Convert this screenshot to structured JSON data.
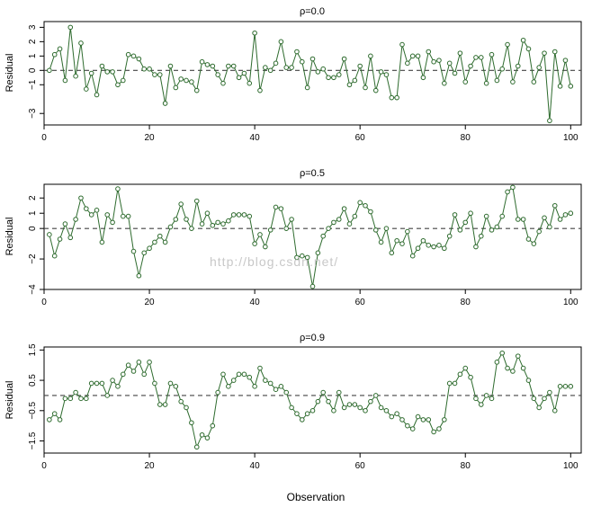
{
  "xlabel": "Observation",
  "watermark": "http://blog.csdn.net/",
  "colors": {
    "series": "#2e6b2e",
    "reference_line": "#444444"
  },
  "chart_data": [
    {
      "type": "line",
      "title": "ρ=0.0",
      "xlabel": "",
      "ylabel": "Residual",
      "xlim": [
        0,
        102
      ],
      "ylim": [
        -3.8,
        3.4
      ],
      "xticks": [
        "0",
        "20",
        "40",
        "60",
        "80",
        "100"
      ],
      "yticks": [
        "−3",
        "−1",
        "0",
        "1",
        "2",
        "3"
      ],
      "reference_line": 0,
      "x": [
        1,
        2,
        3,
        4,
        5,
        6,
        7,
        8,
        9,
        10,
        11,
        12,
        13,
        14,
        15,
        16,
        17,
        18,
        19,
        20,
        21,
        22,
        23,
        24,
        25,
        26,
        27,
        28,
        29,
        30,
        31,
        32,
        33,
        34,
        35,
        36,
        37,
        38,
        39,
        40,
        41,
        42,
        43,
        44,
        45,
        46,
        47,
        48,
        49,
        50,
        51,
        52,
        53,
        54,
        55,
        56,
        57,
        58,
        59,
        60,
        61,
        62,
        63,
        64,
        65,
        66,
        67,
        68,
        69,
        70,
        71,
        72,
        73,
        74,
        75,
        76,
        77,
        78,
        79,
        80,
        81,
        82,
        83,
        84,
        85,
        86,
        87,
        88,
        89,
        90,
        91,
        92,
        93,
        94,
        95,
        96,
        97,
        98,
        99,
        100
      ],
      "values": [
        0.0,
        1.1,
        1.5,
        -0.7,
        3.0,
        -0.4,
        1.9,
        -1.3,
        -0.2,
        -1.7,
        0.3,
        -0.1,
        -0.1,
        -1.0,
        -0.7,
        1.1,
        1.0,
        0.8,
        0.1,
        0.1,
        -0.3,
        -0.3,
        -2.3,
        0.3,
        -1.2,
        -0.6,
        -0.7,
        -0.8,
        -1.4,
        0.6,
        0.4,
        0.3,
        -0.3,
        -0.9,
        0.3,
        0.3,
        -0.5,
        -0.2,
        -0.9,
        2.6,
        -1.4,
        0.2,
        0.0,
        0.5,
        2.0,
        0.2,
        0.2,
        1.3,
        0.6,
        -1.2,
        0.8,
        -0.1,
        0.1,
        -0.5,
        -0.5,
        -0.3,
        0.8,
        -1.0,
        -0.7,
        0.3,
        -1.2,
        1.0,
        -1.4,
        -0.1,
        -0.3,
        -1.9,
        -1.9,
        1.8,
        0.5,
        1.0,
        1.0,
        -0.5,
        1.3,
        0.6,
        0.7,
        -0.9,
        0.5,
        -0.2,
        1.2,
        -0.8,
        0.3,
        0.9,
        0.9,
        -0.9,
        1.1,
        -0.7,
        0.1,
        1.8,
        -0.8,
        0.3,
        2.1,
        1.5,
        -0.8,
        0.2,
        1.2,
        -3.5,
        1.3,
        -1.1,
        0.7,
        -1.1
      ]
    },
    {
      "type": "line",
      "title": "ρ=0.5",
      "xlabel": "",
      "ylabel": "Residual",
      "xlim": [
        0,
        102
      ],
      "ylim": [
        -4.0,
        2.9
      ],
      "xticks": [
        "0",
        "20",
        "40",
        "60",
        "80",
        "100"
      ],
      "yticks": [
        "−4",
        "−2",
        "0",
        "1",
        "2"
      ],
      "reference_line": 0,
      "x": [
        1,
        2,
        3,
        4,
        5,
        6,
        7,
        8,
        9,
        10,
        11,
        12,
        13,
        14,
        15,
        16,
        17,
        18,
        19,
        20,
        21,
        22,
        23,
        24,
        25,
        26,
        27,
        28,
        29,
        30,
        31,
        32,
        33,
        34,
        35,
        36,
        37,
        38,
        39,
        40,
        41,
        42,
        43,
        44,
        45,
        46,
        47,
        48,
        49,
        50,
        51,
        52,
        53,
        54,
        55,
        56,
        57,
        58,
        59,
        60,
        61,
        62,
        63,
        64,
        65,
        66,
        67,
        68,
        69,
        70,
        71,
        72,
        73,
        74,
        75,
        76,
        77,
        78,
        79,
        80,
        81,
        82,
        83,
        84,
        85,
        86,
        87,
        88,
        89,
        90,
        91,
        92,
        93,
        94,
        95,
        96,
        97,
        98,
        99,
        100
      ],
      "values": [
        -0.4,
        -1.8,
        -0.7,
        0.3,
        -0.6,
        0.6,
        2.0,
        1.3,
        0.9,
        1.2,
        -0.9,
        0.9,
        0.4,
        2.6,
        0.8,
        0.8,
        -1.5,
        -3.1,
        -1.6,
        -1.3,
        -0.9,
        -0.5,
        -0.9,
        0.1,
        0.6,
        1.6,
        0.6,
        0.0,
        1.8,
        0.3,
        1.0,
        0.2,
        0.4,
        0.3,
        0.5,
        0.9,
        0.9,
        0.9,
        0.8,
        -1.0,
        -0.4,
        -1.2,
        -0.1,
        1.4,
        1.3,
        0.0,
        0.6,
        -1.9,
        -1.8,
        -1.9,
        -3.8,
        -1.6,
        -0.5,
        0.0,
        0.4,
        0.6,
        1.3,
        0.3,
        0.8,
        1.7,
        1.5,
        1.1,
        -0.1,
        -0.9,
        0.0,
        -1.6,
        -0.8,
        -1.0,
        -0.2,
        -1.8,
        -1.3,
        -0.8,
        -1.1,
        -1.2,
        -1.1,
        -1.3,
        -0.5,
        0.9,
        -0.1,
        0.4,
        1.0,
        -1.2,
        -0.5,
        0.8,
        -0.1,
        0.1,
        0.8,
        2.4,
        2.7,
        0.6,
        0.6,
        -0.7,
        -1.0,
        -0.2,
        0.7,
        0.1,
        1.5,
        0.6,
        0.9,
        1.0
      ]
    },
    {
      "type": "line",
      "title": "ρ=0.9",
      "xlabel": "",
      "ylabel": "Residual",
      "xlim": [
        0,
        102
      ],
      "ylim": [
        -1.9,
        1.6
      ],
      "xticks": [
        "0",
        "20",
        "40",
        "60",
        "80",
        "100"
      ],
      "yticks": [
        "−1.5",
        "−0.5",
        "0.5",
        "1.5"
      ],
      "reference_line": 0,
      "x": [
        1,
        2,
        3,
        4,
        5,
        6,
        7,
        8,
        9,
        10,
        11,
        12,
        13,
        14,
        15,
        16,
        17,
        18,
        19,
        20,
        21,
        22,
        23,
        24,
        25,
        26,
        27,
        28,
        29,
        30,
        31,
        32,
        33,
        34,
        35,
        36,
        37,
        38,
        39,
        40,
        41,
        42,
        43,
        44,
        45,
        46,
        47,
        48,
        49,
        50,
        51,
        52,
        53,
        54,
        55,
        56,
        57,
        58,
        59,
        60,
        61,
        62,
        63,
        64,
        65,
        66,
        67,
        68,
        69,
        70,
        71,
        72,
        73,
        74,
        75,
        76,
        77,
        78,
        79,
        80,
        81,
        82,
        83,
        84,
        85,
        86,
        87,
        88,
        89,
        90,
        91,
        92,
        93,
        94,
        95,
        96,
        97,
        98,
        99,
        100
      ],
      "values": [
        -0.8,
        -0.6,
        -0.8,
        -0.1,
        -0.1,
        0.1,
        -0.1,
        -0.1,
        0.4,
        0.4,
        0.4,
        0.0,
        0.5,
        0.3,
        0.7,
        1.0,
        0.8,
        1.1,
        0.7,
        1.1,
        0.4,
        -0.3,
        -0.3,
        0.4,
        0.3,
        -0.2,
        -0.4,
        -0.9,
        -1.7,
        -1.3,
        -1.4,
        -1.0,
        0.1,
        0.7,
        0.3,
        0.5,
        0.7,
        0.7,
        0.6,
        0.3,
        0.9,
        0.5,
        0.4,
        0.2,
        0.3,
        0.1,
        -0.4,
        -0.6,
        -0.8,
        -0.6,
        -0.5,
        -0.2,
        0.1,
        -0.2,
        -0.5,
        0.1,
        -0.4,
        -0.3,
        -0.3,
        -0.4,
        -0.5,
        -0.2,
        0.0,
        -0.4,
        -0.5,
        -0.7,
        -0.6,
        -0.8,
        -1.0,
        -1.1,
        -0.7,
        -0.8,
        -0.8,
        -1.2,
        -1.1,
        -0.8,
        0.4,
        0.4,
        0.7,
        0.9,
        0.6,
        -0.1,
        -0.3,
        0.0,
        -0.1,
        1.1,
        1.4,
        0.9,
        0.8,
        1.3,
        0.9,
        0.5,
        -0.1,
        -0.4,
        -0.1,
        0.1,
        -0.5,
        0.3,
        0.3,
        0.3
      ]
    }
  ]
}
